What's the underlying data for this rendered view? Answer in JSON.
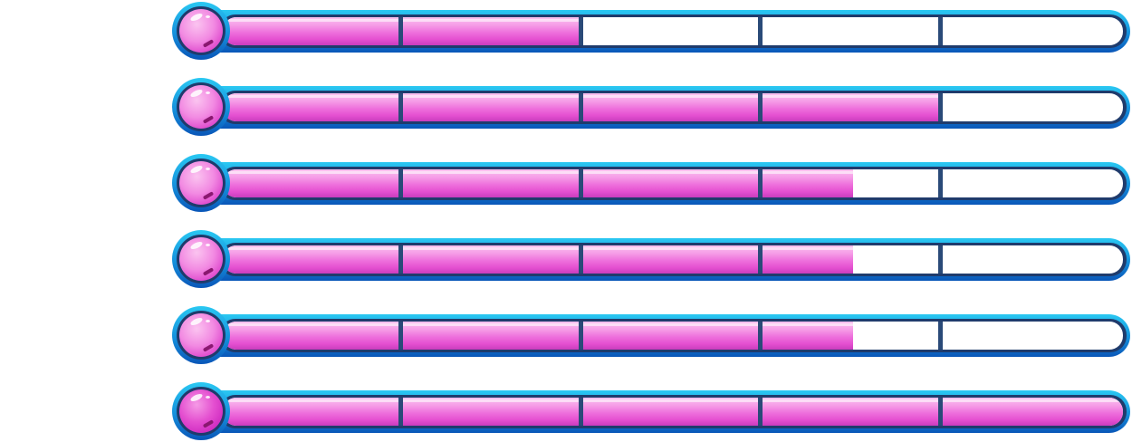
{
  "colors": {
    "frame": "#1590dc",
    "track": "#1f3b6c",
    "liquid": "#ee6fdc",
    "empty": "#ffffff"
  },
  "segments": 5,
  "bars": [
    {
      "value_percent": 40
    },
    {
      "value_percent": 80
    },
    {
      "value_percent": 70
    },
    {
      "value_percent": 70
    },
    {
      "value_percent": 70
    },
    {
      "value_percent": 100
    }
  ]
}
